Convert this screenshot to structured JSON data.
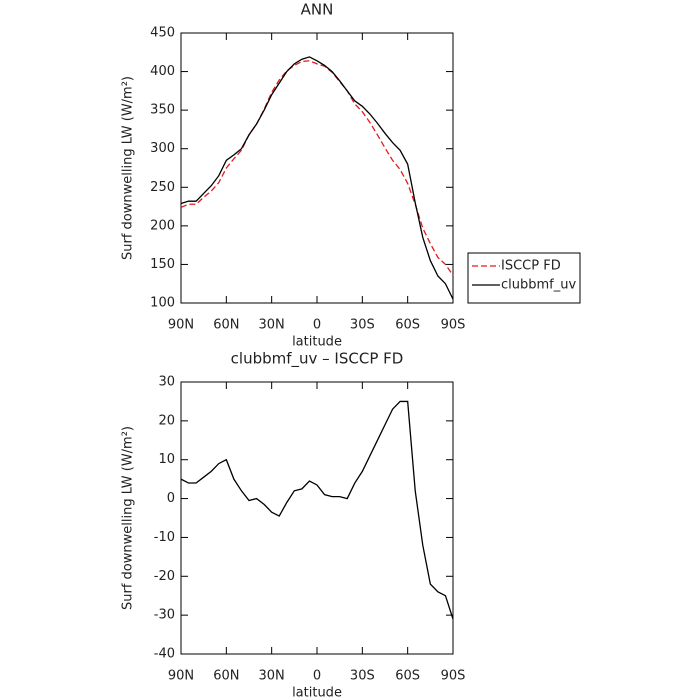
{
  "chart_data": [
    {
      "type": "line",
      "title": "ANN",
      "xlabel": "latitude",
      "ylabel": "Surf downwelling LW (W/m²)",
      "x": [
        90,
        85,
        80,
        75,
        70,
        65,
        60,
        55,
        50,
        45,
        40,
        35,
        30,
        25,
        20,
        15,
        10,
        5,
        0,
        -5,
        -10,
        -15,
        -20,
        -25,
        -30,
        -35,
        -40,
        -45,
        -50,
        -55,
        -60,
        -65,
        -70,
        -75,
        -80,
        -85,
        -90
      ],
      "series": [
        {
          "name": "ISCCP FD",
          "color": "#e41a1c",
          "dash": true,
          "values": [
            224,
            228,
            228,
            237,
            245,
            256,
            275,
            287,
            298,
            318,
            332,
            351,
            373,
            389,
            401,
            408,
            413,
            414,
            410,
            407,
            399,
            387,
            375,
            358,
            348,
            334,
            318,
            301,
            285,
            273,
            255,
            228,
            197,
            177,
            159,
            150,
            136
          ]
        },
        {
          "name": "clubbmf_uv",
          "color": "#000000",
          "dash": false,
          "values": [
            229,
            232,
            232,
            242,
            252,
            265,
            285,
            292,
            300,
            318,
            332,
            350,
            370,
            385,
            400,
            410,
            416,
            419,
            414,
            408,
            400,
            388,
            375,
            362,
            355,
            345,
            333,
            320,
            308,
            298,
            280,
            230,
            185,
            155,
            135,
            125,
            105
          ]
        }
      ],
      "xlim": [
        90,
        -90
      ],
      "xticks": [
        {
          "value": 90,
          "label": "90N"
        },
        {
          "value": 60,
          "label": "60N"
        },
        {
          "value": 30,
          "label": "30N"
        },
        0,
        {
          "value": -30,
          "label": "30S"
        },
        {
          "value": -60,
          "label": "60S"
        },
        {
          "value": -90,
          "label": "90S"
        }
      ],
      "ylim": [
        100,
        450
      ],
      "yticks": [
        100,
        150,
        200,
        250,
        300,
        350,
        400,
        450
      ],
      "legend": "right"
    },
    {
      "type": "line",
      "title": "clubbmf_uv – ISCCP FD",
      "xlabel": "latitude",
      "ylabel": "Surf downwelling LW (W/m²)",
      "x": [
        90,
        85,
        80,
        75,
        70,
        65,
        60,
        55,
        50,
        45,
        40,
        35,
        30,
        25,
        20,
        15,
        10,
        5,
        0,
        -5,
        -10,
        -15,
        -20,
        -25,
        -30,
        -35,
        -40,
        -45,
        -50,
        -55,
        -60,
        -65,
        -70,
        -75,
        -80,
        -85,
        -90
      ],
      "series": [
        {
          "name": "clubbmf_uv – ISCCP FD",
          "color": "#000000",
          "dash": false,
          "values": [
            5,
            4,
            4,
            5.5,
            7,
            9,
            10,
            5,
            2,
            -0.5,
            0,
            -1.5,
            -3.5,
            -4.5,
            -1,
            2,
            2.5,
            4.5,
            3.5,
            1,
            0.5,
            0.5,
            0,
            4,
            7,
            11,
            15,
            19,
            23,
            25,
            25,
            2,
            -12,
            -22,
            -24,
            -25,
            -31
          ]
        }
      ],
      "xlim": [
        90,
        -90
      ],
      "xticks": [
        {
          "value": 90,
          "label": "90N"
        },
        {
          "value": 60,
          "label": "60N"
        },
        {
          "value": 30,
          "label": "30N"
        },
        0,
        {
          "value": -30,
          "label": "30S"
        },
        {
          "value": -60,
          "label": "60S"
        },
        {
          "value": -90,
          "label": "90S"
        }
      ],
      "ylim": [
        -40,
        30
      ],
      "yticks": [
        -40,
        -30,
        -20,
        -10,
        0,
        10,
        20,
        30
      ],
      "legend": "none"
    }
  ]
}
